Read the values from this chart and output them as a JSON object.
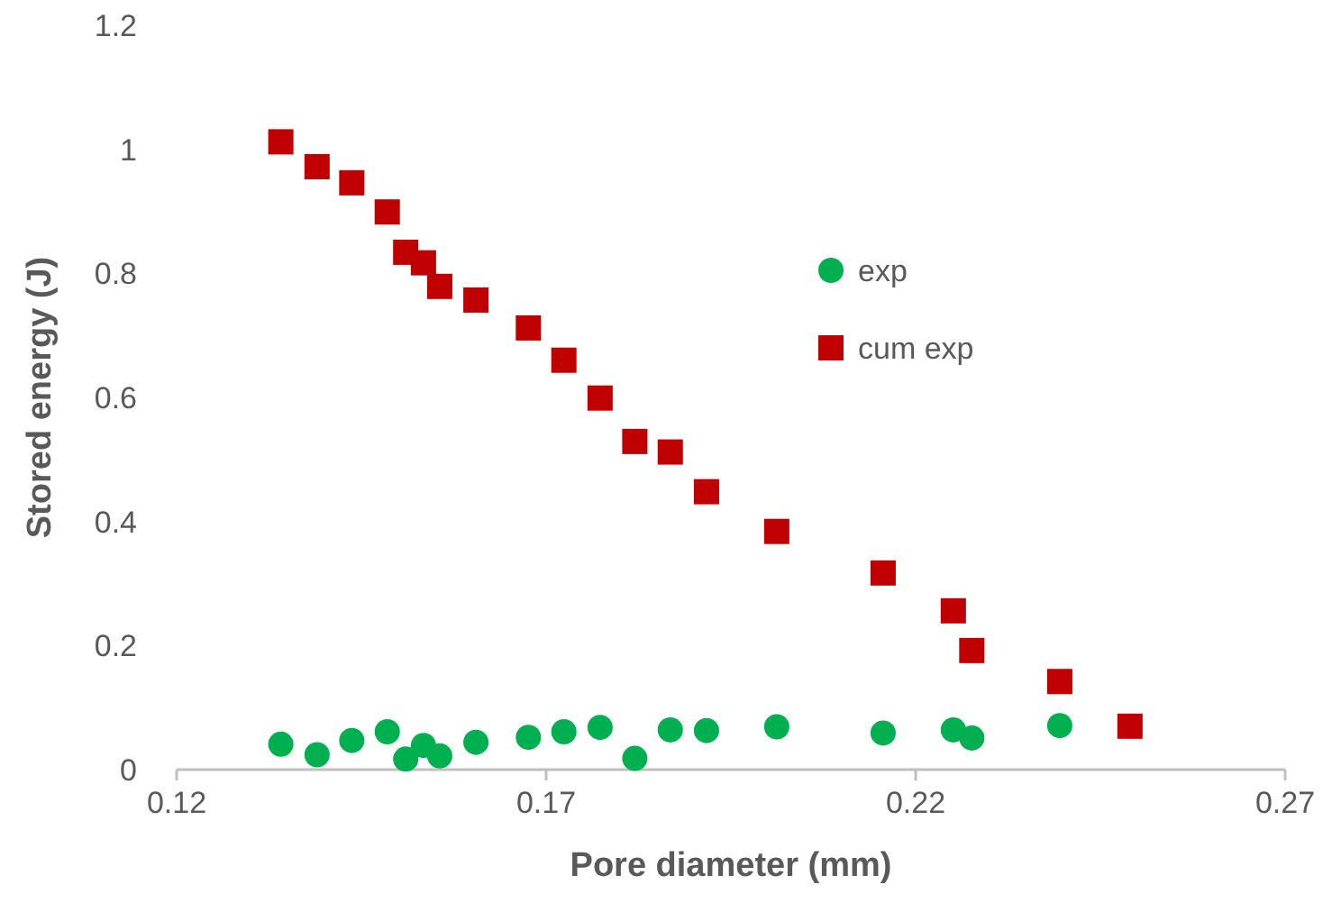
{
  "chart_data": {
    "type": "scatter",
    "xlabel": "Pore diameter (mm)",
    "ylabel": "Stored energy (J)",
    "xlim": [
      0.12,
      0.27
    ],
    "xticks": [
      0.12,
      0.17,
      0.22,
      0.27
    ],
    "ylim": [
      0,
      1.2
    ],
    "yticks": [
      0,
      0.2,
      0.4,
      0.6,
      0.8,
      1,
      1.2
    ],
    "grid": false,
    "legend": "top right",
    "series": [
      {
        "name": "exp",
        "color": "#00b050",
        "marker": "circle",
        "x": [
          0.1341,
          0.139,
          0.1437,
          0.1485,
          0.151,
          0.1534,
          0.1556,
          0.1605,
          0.1676,
          0.1724,
          0.1773,
          0.182,
          0.1868,
          0.1917,
          0.2012,
          0.2156,
          0.2251,
          0.2276,
          0.2395
        ],
        "values": [
          0.041,
          0.024,
          0.047,
          0.061,
          0.017,
          0.039,
          0.022,
          0.044,
          0.052,
          0.061,
          0.068,
          0.018,
          0.064,
          0.063,
          0.069,
          0.059,
          0.064,
          0.051,
          0.071
        ]
      },
      {
        "name": "cum exp",
        "color": "#c00000",
        "marker": "square",
        "x": [
          0.1341,
          0.139,
          0.1437,
          0.1485,
          0.151,
          0.1534,
          0.1556,
          0.1605,
          0.1676,
          0.1724,
          0.1773,
          0.182,
          0.1868,
          0.1917,
          0.2012,
          0.2156,
          0.2251,
          0.2276,
          0.2395,
          0.249
        ],
        "values": [
          1.012,
          0.972,
          0.946,
          0.899,
          0.834,
          0.817,
          0.779,
          0.757,
          0.712,
          0.66,
          0.599,
          0.529,
          0.512,
          0.448,
          0.384,
          0.317,
          0.256,
          0.192,
          0.142,
          0.07
        ]
      }
    ]
  }
}
